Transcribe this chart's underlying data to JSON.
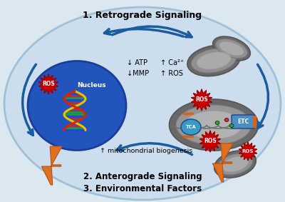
{
  "bg_color": "#dce8f0",
  "oval_color": "#ccdded",
  "oval_edge": "#a0c0d8",
  "nucleus_color": "#2255bb",
  "nucleus_edge": "#1a3d99",
  "arrow_color": "#1a5c9e",
  "lightning_color": "#e07020",
  "lightning_edge": "#b85010",
  "ros_color": "#cc0000",
  "ros_text_color": "#ffffff",
  "etc_color": "#4a8fc4",
  "tca_color": "#3a9ac8",
  "mito_outer": "#787878",
  "mito_inner": "#a0a0a0",
  "mito_inner2": "#b8b8b8",
  "title_retrograde": "1. Retrograde Signaling",
  "title_anterograde": "2. Anterograde Signaling",
  "title_env": "3. Environmental Factors",
  "label_nucleus": "Nucleus",
  "label_mito_bio": "↑ mitochondrial biogenesis",
  "label_atp": "↓ ATP",
  "label_ca": "↑ Ca²⁺",
  "label_mmp": "↓MMP",
  "label_ros_up": "↑ ROS"
}
